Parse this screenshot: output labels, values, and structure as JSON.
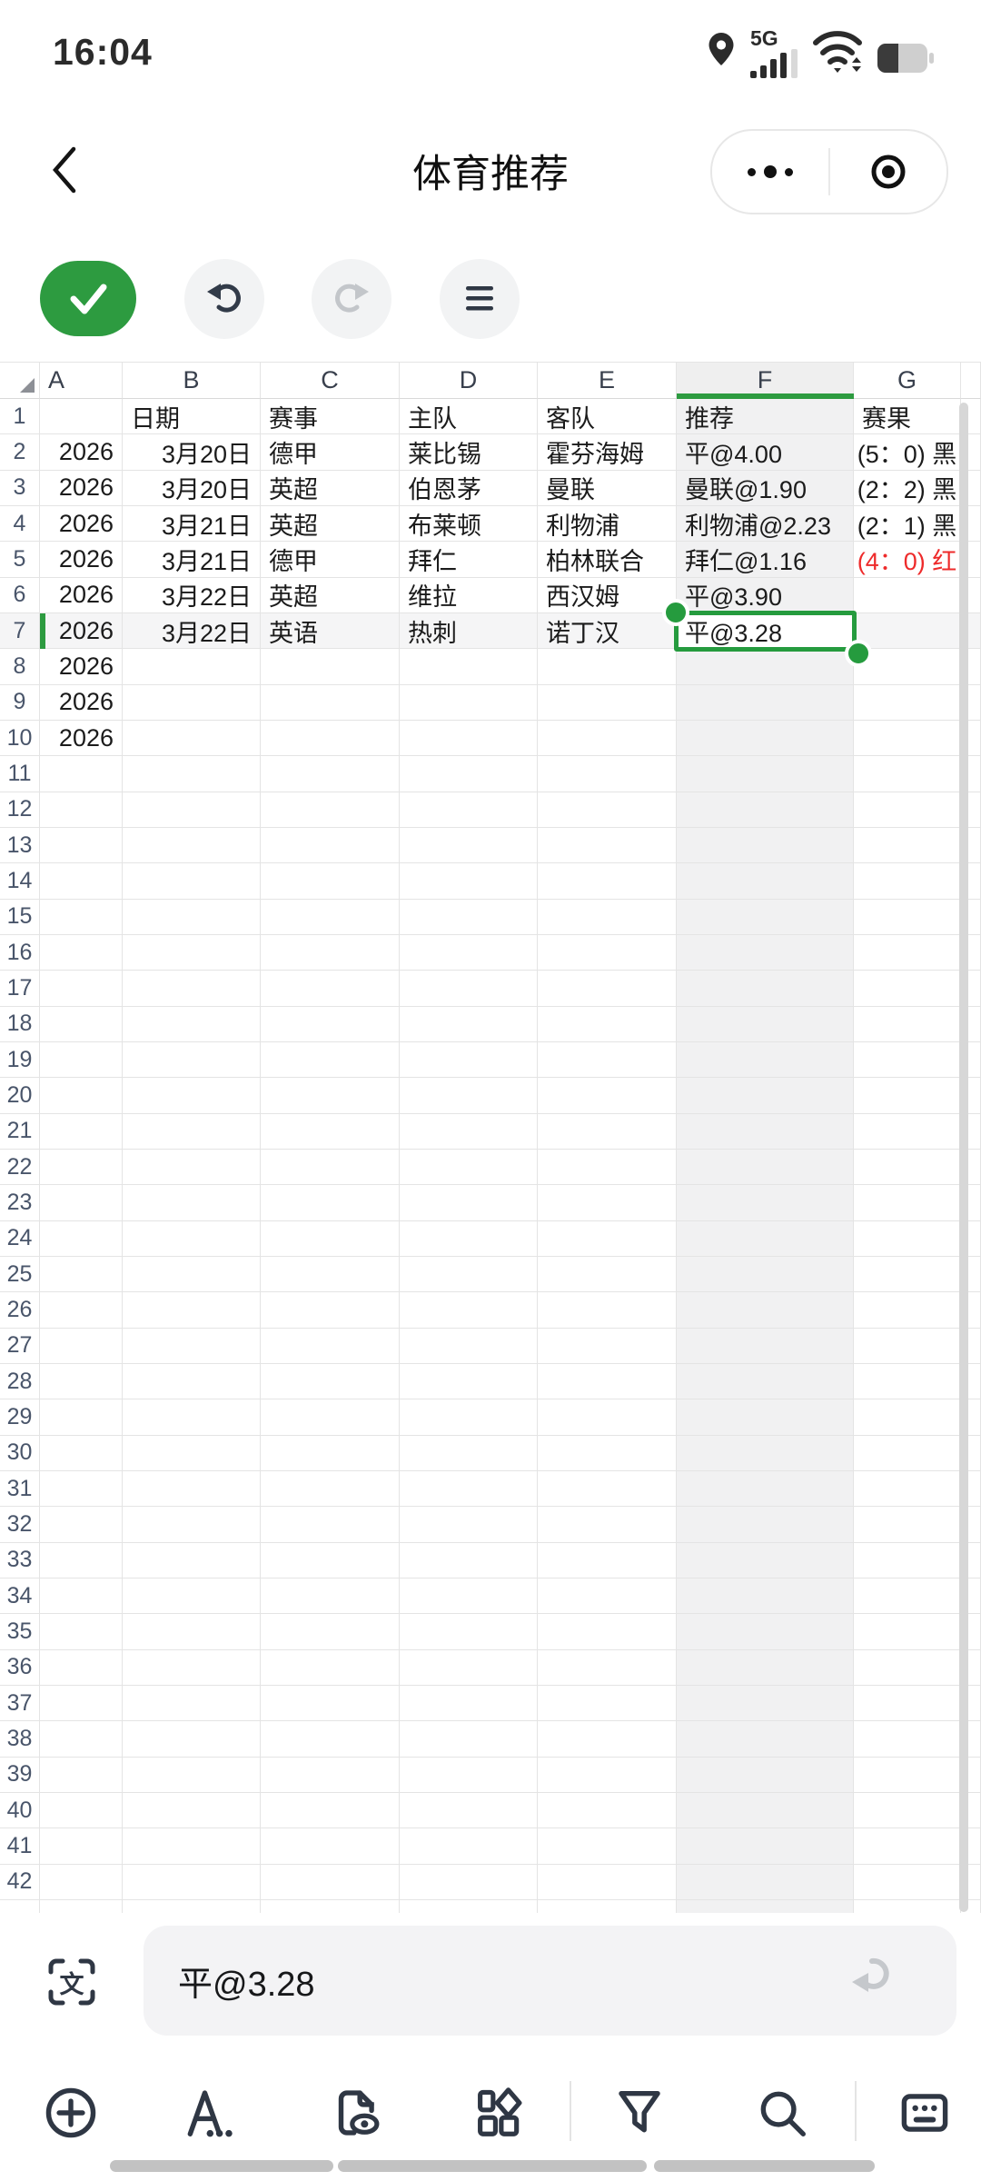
{
  "status_bar": {
    "time": "16:04",
    "network_label": "5G"
  },
  "nav": {
    "title": "体育推荐"
  },
  "colors": {
    "accent_green": "#2d9b40",
    "loss_red": "#ee2b2b",
    "selection_green": "#259b3e"
  },
  "formula_bar": {
    "value": "平@3.28"
  },
  "sheet": {
    "column_letters": [
      "A",
      "B",
      "C",
      "D",
      "E",
      "F",
      "G"
    ],
    "column_bounds": [
      0,
      44,
      135,
      287,
      440,
      592,
      745,
      940,
      1058,
      1080
    ],
    "column_align": {
      "A": "ar",
      "B": "ar",
      "C": "al",
      "D": "al",
      "E": "al",
      "F": "al",
      "G": "ac"
    },
    "row_count": 42,
    "selected_column": "F",
    "selected_row": 7,
    "selected_cell": "F7",
    "rows": [
      {
        "n": 1,
        "header": true,
        "cells": {
          "B": "日期",
          "C": "赛事",
          "D": "主队",
          "E": "客队",
          "F": "推荐",
          "G": "赛果"
        }
      },
      {
        "n": 2,
        "cells": {
          "A": "2026",
          "B": "3月20日",
          "C": "德甲",
          "D": "莱比锡",
          "E": "霍芬海姆",
          "F": "平@4.00",
          "G": "(5：0) 黑"
        }
      },
      {
        "n": 3,
        "cells": {
          "A": "2026",
          "B": "3月20日",
          "C": "英超",
          "D": "伯恩茅",
          "E": "曼联",
          "F": "曼联@1.90",
          "G": "(2：2) 黑"
        }
      },
      {
        "n": 4,
        "cells": {
          "A": "2026",
          "B": "3月21日",
          "C": "英超",
          "D": "布莱顿",
          "E": "利物浦",
          "F": "利物浦@2.23",
          "G": "(2：1) 黑"
        }
      },
      {
        "n": 5,
        "cells": {
          "A": "2026",
          "B": "3月21日",
          "C": "德甲",
          "D": "拜仁",
          "E": "柏林联合",
          "F": "拜仁@1.16",
          "G": "(4：0) 红"
        },
        "result_red": true
      },
      {
        "n": 6,
        "cells": {
          "A": "2026",
          "B": "3月22日",
          "C": "英超",
          "D": "维拉",
          "E": "西汉姆",
          "F": "平@3.90"
        }
      },
      {
        "n": 7,
        "cells": {
          "A": "2026",
          "B": "3月22日",
          "C": "英语",
          "D": "热刺",
          "E": "诺丁汉",
          "F": "平@3.28"
        },
        "selected": true
      },
      {
        "n": 8,
        "cells": {
          "A": "2026"
        }
      },
      {
        "n": 9,
        "cells": {
          "A": "2026"
        }
      },
      {
        "n": 10,
        "cells": {
          "A": "2026"
        }
      }
    ]
  }
}
